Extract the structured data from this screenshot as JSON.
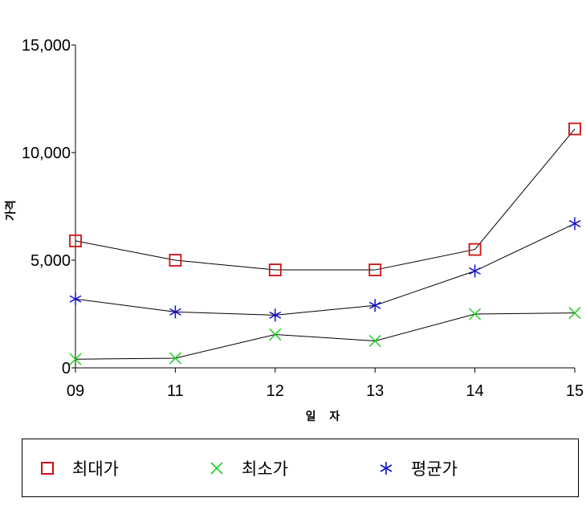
{
  "chart_data": {
    "type": "line",
    "categories": [
      "09",
      "11",
      "12",
      "13",
      "14",
      "15"
    ],
    "xlabel": "일 자",
    "ylabel": "가격",
    "ylim": [
      0,
      15000
    ],
    "yticks": [
      0,
      5000,
      10000,
      15000
    ],
    "ytick_labels": [
      "0",
      "5,000",
      "10,000",
      "15,000"
    ],
    "series": [
      {
        "name": "최대가",
        "marker": "square",
        "color": "#cc1111",
        "values": [
          5900,
          5000,
          4550,
          4550,
          5500,
          11100
        ]
      },
      {
        "name": "최소가",
        "marker": "x",
        "color": "#22cc22",
        "values": [
          400,
          450,
          1550,
          1250,
          2500,
          2550
        ]
      },
      {
        "name": "평균가",
        "marker": "asterisk",
        "color": "#1111cc",
        "values": [
          3200,
          2600,
          2450,
          2900,
          4500,
          6700
        ]
      }
    ],
    "legend_position": "bottom"
  }
}
